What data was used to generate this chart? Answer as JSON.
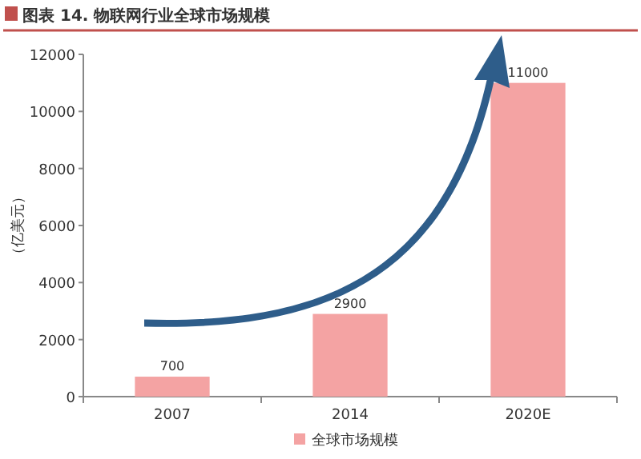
{
  "chart_data": {
    "type": "bar",
    "title": "图表 14. 物联网行业全球市场规模",
    "ylabel": "（亿美元）",
    "categories": [
      "2007",
      "2014",
      "2020E"
    ],
    "series": [
      {
        "name": "全球市场规模",
        "color": "#f4a3a3",
        "values": [
          700,
          2900,
          11000
        ]
      }
    ],
    "ylim": [
      0,
      12000
    ],
    "yticks": [
      0,
      2000,
      4000,
      6000,
      8000,
      10000,
      12000
    ],
    "data_labels": true,
    "legend": "bottom",
    "grid": false
  }
}
